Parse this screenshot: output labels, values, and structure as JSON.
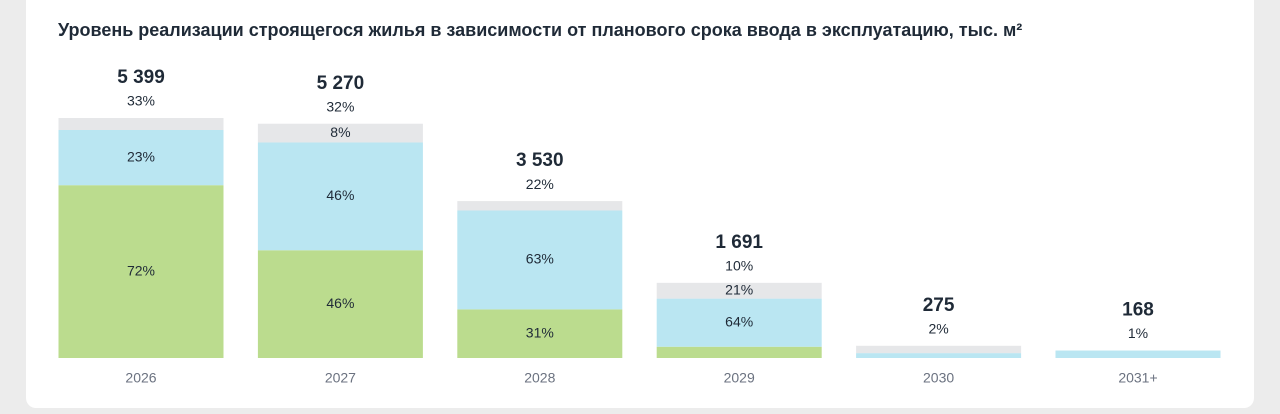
{
  "chart_data": {
    "type": "stacked-bar",
    "title": "Уровень реализации строящегося жилья в зависимости от планового срока ввода в эксплуатацию, тыс. м²",
    "categories": [
      "2026",
      "2027",
      "2028",
      "2029",
      "2030",
      "2031+"
    ],
    "totals": {
      "values": [
        5399,
        5270,
        3530,
        1691,
        275,
        168
      ],
      "value_labels": [
        "5 399",
        "5 270",
        "3 530",
        "1 691",
        "275",
        "168"
      ]
    },
    "shares": {
      "values": [
        33,
        32,
        22,
        10,
        2,
        1
      ],
      "value_labels": [
        "33%",
        "32%",
        "22%",
        "10%",
        "2%",
        "1%"
      ]
    },
    "series": [
      {
        "color": "#bbdc8e",
        "values": [
          72,
          46,
          31,
          15,
          0,
          0
        ],
        "value_labels": [
          "72%",
          "46%",
          "31%",
          null,
          null,
          null
        ]
      },
      {
        "color": "#bae6f2",
        "values": [
          23,
          46,
          63,
          64,
          40,
          100
        ],
        "value_labels": [
          "23%",
          "46%",
          "63%",
          "64%",
          null,
          null
        ]
      },
      {
        "color": "#e6e7e9",
        "values": [
          5,
          8,
          6,
          21,
          60,
          0
        ],
        "value_labels": [
          null,
          "8%",
          null,
          "21%",
          null,
          null
        ]
      }
    ]
  }
}
